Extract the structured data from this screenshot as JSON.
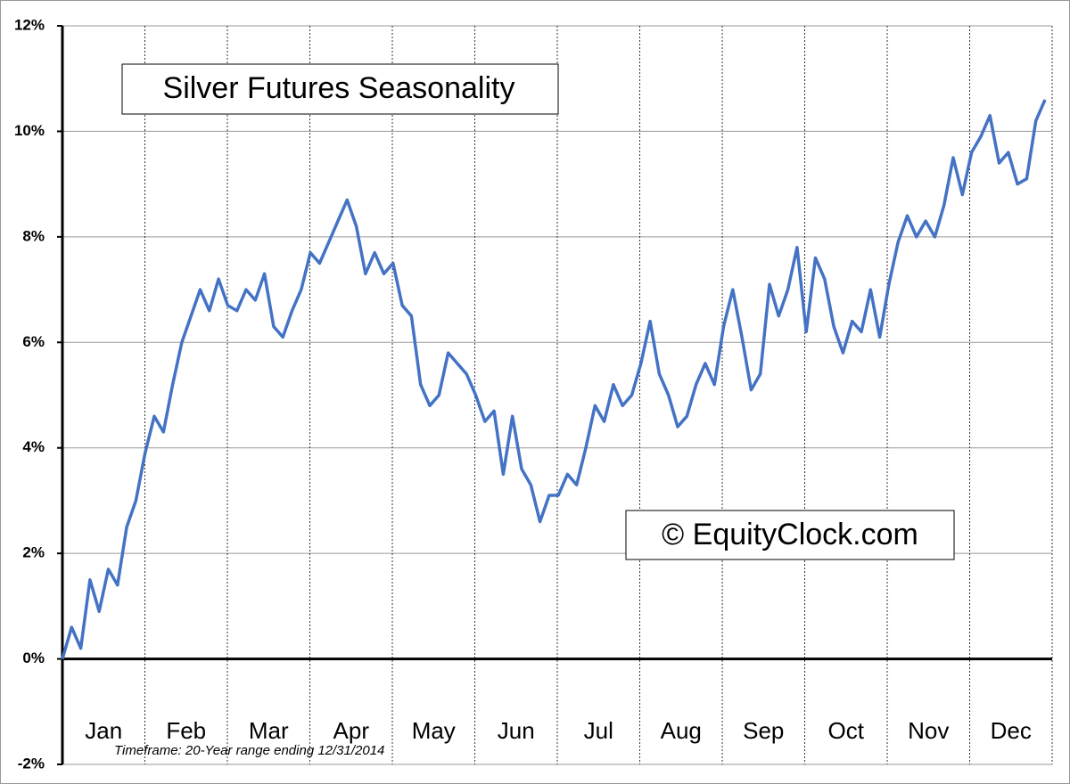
{
  "chart_data": {
    "type": "line",
    "title": "Silver Futures Seasonality",
    "watermark": "© EquityClock.com",
    "footnote": "Timeframe: 20-Year range ending 12/31/2014",
    "months": [
      "Jan",
      "Feb",
      "Mar",
      "Apr",
      "May",
      "Jun",
      "Jul",
      "Aug",
      "Sep",
      "Oct",
      "Nov",
      "Dec"
    ],
    "ylim": [
      -2,
      12
    ],
    "yticks": [
      {
        "value": -2,
        "label": "-2%"
      },
      {
        "value": 0,
        "label": "0%"
      },
      {
        "value": 2,
        "label": "2%"
      },
      {
        "value": 4,
        "label": "4%"
      },
      {
        "value": 6,
        "label": "6%"
      },
      {
        "value": 8,
        "label": "8%"
      },
      {
        "value": 10,
        "label": "10%"
      },
      {
        "value": 12,
        "label": "12%"
      }
    ],
    "grid": true,
    "series": [
      {
        "color": "#4472c4",
        "values": [
          0.0,
          0.6,
          0.2,
          1.5,
          0.9,
          1.7,
          1.4,
          2.5,
          3.0,
          3.9,
          4.6,
          4.3,
          5.2,
          6.0,
          6.5,
          7.0,
          6.6,
          7.2,
          6.7,
          6.6,
          7.0,
          6.8,
          7.3,
          6.3,
          6.1,
          6.6,
          7.0,
          7.7,
          7.5,
          7.9,
          8.3,
          8.7,
          8.2,
          7.3,
          7.7,
          7.3,
          7.5,
          6.7,
          6.5,
          5.2,
          4.8,
          5.0,
          5.8,
          5.6,
          5.4,
          5.0,
          4.5,
          4.7,
          3.5,
          4.6,
          3.6,
          3.3,
          2.6,
          3.1,
          3.1,
          3.5,
          3.3,
          4.0,
          4.8,
          4.5,
          5.2,
          4.8,
          5.0,
          5.6,
          6.4,
          5.4,
          5.0,
          4.4,
          4.6,
          5.2,
          5.6,
          5.2,
          6.3,
          7.0,
          6.1,
          5.1,
          5.4,
          7.1,
          6.5,
          7.0,
          7.8,
          6.2,
          7.6,
          7.2,
          6.3,
          5.8,
          6.4,
          6.2,
          7.0,
          6.1,
          7.1,
          7.9,
          8.4,
          8.0,
          8.3,
          8.0,
          8.6,
          9.5,
          8.8,
          9.6,
          9.9,
          10.3,
          9.4,
          9.6,
          9.0,
          9.1,
          10.2,
          10.6
        ]
      }
    ]
  }
}
